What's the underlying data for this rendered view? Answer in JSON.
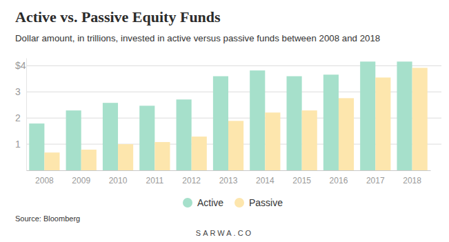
{
  "chart_data": {
    "type": "bar",
    "title": "Active vs. Passive Equity Funds",
    "subtitle": "Dollar amount, in trillions, invested in active versus passive funds between 2008 and 2018",
    "source": "Source: Bloomberg",
    "credit": "SARWA.CO",
    "categories": [
      "2008",
      "2009",
      "2010",
      "2011",
      "2012",
      "2013",
      "2014",
      "2015",
      "2016",
      "2017",
      "2018"
    ],
    "series": [
      {
        "name": "Active",
        "color": "#a6e0cb",
        "values": [
          1.79,
          2.29,
          2.58,
          2.47,
          2.71,
          3.6,
          3.82,
          3.6,
          3.66,
          4.16,
          4.16
        ]
      },
      {
        "name": "Passive",
        "color": "#fde6ad",
        "values": [
          0.68,
          0.79,
          1.0,
          1.08,
          1.29,
          1.89,
          2.21,
          2.29,
          2.76,
          3.55,
          3.92
        ]
      }
    ],
    "ylim": [
      0,
      4.3
    ],
    "yticks": [
      1,
      2,
      3,
      {
        "value": 4,
        "label": "$4"
      }
    ],
    "grid": true,
    "legend": "bottom"
  }
}
